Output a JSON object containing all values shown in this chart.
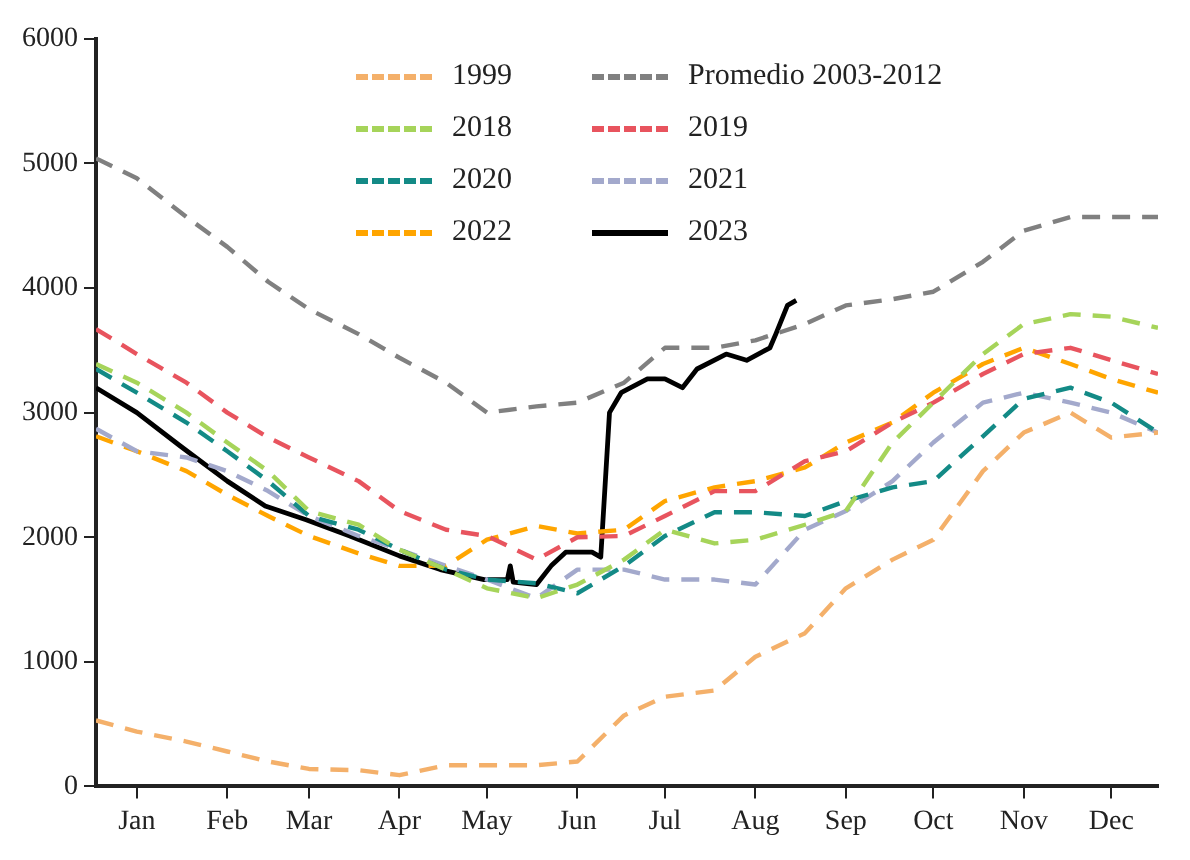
{
  "chart_data": {
    "type": "line",
    "xlim": [
      "--01-01",
      "--12-31"
    ],
    "ylim": [
      0,
      6000
    ],
    "xticks": [
      {
        "value": "--01-15",
        "label": "Jan"
      },
      {
        "value": "--02-15",
        "label": "Feb"
      },
      {
        "value": "--03-15",
        "label": "Mar"
      },
      {
        "value": "--04-15",
        "label": "Apr"
      },
      {
        "value": "--05-15",
        "label": "May"
      },
      {
        "value": "--06-15",
        "label": "Jun"
      },
      {
        "value": "--07-15",
        "label": "Jul"
      },
      {
        "value": "--08-15",
        "label": "Aug"
      },
      {
        "value": "--09-15",
        "label": "Sep"
      },
      {
        "value": "--10-15",
        "label": "Oct"
      },
      {
        "value": "--11-15",
        "label": "Nov"
      },
      {
        "value": "--12-15",
        "label": "Dec"
      }
    ],
    "yticks": [
      0,
      1000,
      2000,
      3000,
      4000,
      5000,
      6000
    ],
    "x": [
      "--01-01",
      "--01-15",
      "--02-01",
      "--02-15",
      "--03-01",
      "--03-15",
      "--04-01",
      "--04-15",
      "--05-01",
      "--05-15",
      "--06-01",
      "--06-15",
      "--07-01",
      "--07-15",
      "--08-01",
      "--08-15",
      "--09-01",
      "--09-15",
      "--10-01",
      "--10-15",
      "--11-01",
      "--11-15",
      "--12-01",
      "--12-15",
      "--12-31"
    ],
    "grid": false,
    "legend": "top",
    "marker": "none",
    "series": [
      {
        "name": "1999",
        "color": "#f4b06a",
        "line_style": "dashed",
        "values": [
          530,
          440,
          360,
          280,
          200,
          140,
          130,
          90,
          170,
          170,
          170,
          200,
          570,
          720,
          770,
          1040,
          1230,
          1590,
          1820,
          1980,
          2530,
          2840,
          3000,
          2800,
          2840
        ]
      },
      {
        "name": "Promedio 2003-2012",
        "color": "#808080",
        "line_style": "dashed",
        "values": [
          5040,
          4880,
          4570,
          4330,
          4050,
          3830,
          3630,
          3440,
          3240,
          3000,
          3050,
          3080,
          3240,
          3520,
          3520,
          3580,
          3710,
          3860,
          3910,
          3970,
          4210,
          4460,
          4570,
          4570,
          4570
        ]
      },
      {
        "name": "2018",
        "color": "#a6d45a",
        "line_style": "dashed",
        "values": [
          3390,
          3240,
          3000,
          2760,
          2530,
          2210,
          2100,
          1900,
          1740,
          1590,
          1510,
          1620,
          1820,
          2060,
          1950,
          1980,
          2100,
          2210,
          2760,
          3080,
          3470,
          3710,
          3790,
          3770,
          3680
        ]
      },
      {
        "name": "2019",
        "color": "#e8545e",
        "line_style": "dashed",
        "values": [
          3670,
          3470,
          3240,
          3000,
          2800,
          2640,
          2450,
          2210,
          2060,
          2010,
          1820,
          2000,
          2010,
          2170,
          2370,
          2370,
          2610,
          2690,
          2920,
          3080,
          3310,
          3470,
          3520,
          3420,
          3310
        ]
      },
      {
        "name": "2020",
        "color": "#138a86",
        "line_style": "dashed",
        "values": [
          3350,
          3160,
          2920,
          2690,
          2450,
          2170,
          2060,
          1900,
          1740,
          1660,
          1630,
          1550,
          1770,
          2010,
          2200,
          2200,
          2170,
          2290,
          2400,
          2450,
          2810,
          3110,
          3200,
          3080,
          2840
        ]
      },
      {
        "name": "2021",
        "color": "#a3a9cc",
        "line_style": "dashed",
        "values": [
          2870,
          2690,
          2640,
          2530,
          2370,
          2170,
          2010,
          1900,
          1770,
          1660,
          1510,
          1740,
          1740,
          1660,
          1660,
          1620,
          2060,
          2210,
          2450,
          2760,
          3080,
          3160,
          3080,
          3000,
          2840
        ]
      },
      {
        "name": "2022",
        "color": "#ffa500",
        "line_style": "dashed",
        "values": [
          2810,
          2690,
          2530,
          2340,
          2170,
          2010,
          1870,
          1770,
          1770,
          1980,
          2090,
          2030,
          2060,
          2290,
          2400,
          2450,
          2560,
          2760,
          2920,
          3160,
          3390,
          3520,
          3390,
          3270,
          3160
        ]
      },
      {
        "name": "2023",
        "color": "#000000",
        "line_style": "solid",
        "x": [
          "--01-01",
          "--01-15",
          "--01-30",
          "--02-15",
          "--02-28",
          "--03-14",
          "--03-29",
          "--04-15",
          "--04-29",
          "--05-14",
          "--05-22",
          "--05-23",
          "--05-24",
          "--06-01",
          "--06-06",
          "--06-11",
          "--06-20",
          "--06-23",
          "--06-26",
          "--06-30",
          "--07-09",
          "--07-15",
          "--07-21",
          "--07-26",
          "--08-05",
          "--08-12",
          "--08-20",
          "--08-22",
          "--08-26",
          "--08-29"
        ],
        "values": [
          3200,
          3000,
          2730,
          2450,
          2250,
          2140,
          2010,
          1850,
          1740,
          1660,
          1660,
          1770,
          1640,
          1620,
          1770,
          1880,
          1880,
          1840,
          3000,
          3160,
          3270,
          3270,
          3200,
          3350,
          3470,
          3420,
          3520,
          3630,
          3860,
          3900
        ]
      }
    ]
  }
}
